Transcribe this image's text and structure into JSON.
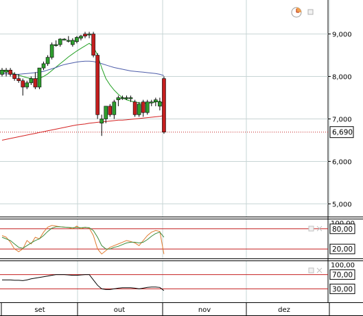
{
  "chart_data": [
    {
      "type": "candlestick",
      "panel": "price",
      "x_axis_labels": [
        "set",
        "out",
        "nov",
        "dez"
      ],
      "y_ticks": [
        "9,000",
        "8,000",
        "7,000",
        "6,000",
        "5,000"
      ],
      "ylim": [
        4.7,
        9.8
      ],
      "grid": true,
      "last_price_label": "6,690",
      "last_price": 6.69,
      "candles": [
        {
          "o": 8.05,
          "h": 8.2,
          "l": 8.0,
          "c": 8.15
        },
        {
          "o": 8.1,
          "h": 8.2,
          "l": 8.0,
          "c": 8.15
        },
        {
          "o": 8.15,
          "h": 8.2,
          "l": 8.0,
          "c": 8.05
        },
        {
          "o": 8.05,
          "h": 8.1,
          "l": 7.9,
          "c": 7.95
        },
        {
          "o": 7.95,
          "h": 8.05,
          "l": 7.85,
          "c": 7.9
        },
        {
          "o": 7.9,
          "h": 7.95,
          "l": 7.55,
          "c": 7.75
        },
        {
          "o": 7.75,
          "h": 7.9,
          "l": 7.7,
          "c": 7.85
        },
        {
          "o": 7.85,
          "h": 8.0,
          "l": 7.8,
          "c": 7.95
        },
        {
          "o": 7.95,
          "h": 8.1,
          "l": 7.7,
          "c": 7.75
        },
        {
          "o": 7.75,
          "h": 8.2,
          "l": 7.7,
          "c": 8.2
        },
        {
          "o": 8.2,
          "h": 8.35,
          "l": 8.15,
          "c": 8.3
        },
        {
          "o": 8.3,
          "h": 8.5,
          "l": 8.25,
          "c": 8.45
        },
        {
          "o": 8.45,
          "h": 8.8,
          "l": 8.4,
          "c": 8.75
        },
        {
          "o": 8.75,
          "h": 8.85,
          "l": 8.7,
          "c": 8.75
        },
        {
          "o": 8.75,
          "h": 8.9,
          "l": 8.7,
          "c": 8.88
        },
        {
          "o": 8.88,
          "h": 8.9,
          "l": 8.85,
          "c": 8.88
        },
        {
          "o": 8.85,
          "h": 8.95,
          "l": 8.8,
          "c": 8.85
        },
        {
          "o": 8.75,
          "h": 8.9,
          "l": 8.7,
          "c": 8.85
        },
        {
          "o": 8.82,
          "h": 8.95,
          "l": 8.78,
          "c": 8.92
        },
        {
          "o": 8.9,
          "h": 8.98,
          "l": 8.85,
          "c": 8.95
        },
        {
          "o": 9.0,
          "h": 9.05,
          "l": 8.9,
          "c": 8.95
        },
        {
          "o": 9.0,
          "h": 9.05,
          "l": 8.9,
          "c": 9.0
        },
        {
          "o": 9.0,
          "h": 9.05,
          "l": 8.45,
          "c": 8.5
        },
        {
          "o": 8.5,
          "h": 8.55,
          "l": 7.0,
          "c": 7.1
        },
        {
          "o": 6.9,
          "h": 7.1,
          "l": 6.6,
          "c": 7.0
        },
        {
          "o": 7.0,
          "h": 7.3,
          "l": 6.9,
          "c": 7.3
        },
        {
          "o": 7.3,
          "h": 7.35,
          "l": 7.05,
          "c": 7.1
        },
        {
          "o": 7.1,
          "h": 7.45,
          "l": 7.0,
          "c": 7.4
        },
        {
          "o": 7.45,
          "h": 7.55,
          "l": 7.3,
          "c": 7.5
        },
        {
          "o": 7.5,
          "h": 7.55,
          "l": 7.45,
          "c": 7.5
        },
        {
          "o": 7.5,
          "h": 7.55,
          "l": 7.45,
          "c": 7.5
        },
        {
          "o": 7.5,
          "h": 7.55,
          "l": 7.4,
          "c": 7.5
        },
        {
          "o": 7.4,
          "h": 7.45,
          "l": 7.05,
          "c": 7.1
        },
        {
          "o": 7.1,
          "h": 7.4,
          "l": 7.05,
          "c": 7.35
        },
        {
          "o": 7.4,
          "h": 7.45,
          "l": 7.05,
          "c": 7.15
        },
        {
          "o": 7.15,
          "h": 7.45,
          "l": 7.1,
          "c": 7.4
        },
        {
          "o": 7.4,
          "h": 7.45,
          "l": 7.3,
          "c": 7.4
        },
        {
          "o": 7.4,
          "h": 7.5,
          "l": 7.3,
          "c": 7.45
        },
        {
          "o": 7.3,
          "h": 7.5,
          "l": 7.2,
          "c": 7.4
        },
        {
          "o": 7.95,
          "h": 8.0,
          "l": 6.65,
          "c": 6.69
        }
      ],
      "moving_averages": [
        {
          "color": "#22a022",
          "values": [
            8.15,
            8.13,
            8.1,
            8.06,
            8.03,
            8.0,
            7.97,
            7.95,
            7.94,
            7.96,
            8.0,
            8.06,
            8.14,
            8.22,
            8.3,
            8.38,
            8.46,
            8.53,
            8.6,
            8.66,
            8.72,
            8.78,
            8.7,
            8.5,
            8.2,
            7.95,
            7.8,
            7.68,
            7.58,
            7.5,
            7.45,
            7.42,
            7.4,
            7.38,
            7.37,
            7.37,
            7.38,
            7.4,
            7.42,
            7.35
          ]
        },
        {
          "color": "#4a5aa8",
          "values": [
            8.07,
            8.06,
            8.06,
            8.05,
            8.05,
            8.06,
            8.07,
            8.08,
            8.09,
            8.1,
            8.12,
            8.15,
            8.18,
            8.21,
            8.25,
            8.28,
            8.3,
            8.32,
            8.34,
            8.35,
            8.36,
            8.36,
            8.35,
            8.33,
            8.3,
            8.27,
            8.24,
            8.21,
            8.19,
            8.17,
            8.15,
            8.13,
            8.12,
            8.11,
            8.1,
            8.09,
            8.08,
            8.07,
            8.05,
            8.02
          ]
        },
        {
          "color": "#d42020",
          "values": [
            6.5,
            6.52,
            6.54,
            6.56,
            6.58,
            6.6,
            6.62,
            6.64,
            6.66,
            6.68,
            6.7,
            6.72,
            6.74,
            6.76,
            6.78,
            6.8,
            6.82,
            6.84,
            6.86,
            6.87,
            6.88,
            6.9,
            6.91,
            6.92,
            6.93,
            6.94,
            6.95,
            6.96,
            6.97,
            6.97,
            6.98,
            6.99,
            7.0,
            7.01,
            7.02,
            7.03,
            7.04,
            7.05,
            7.06,
            7.08
          ]
        }
      ]
    },
    {
      "type": "line",
      "panel": "oscillator-1",
      "y_ticks": [
        "100,00",
        "80,00",
        "20,00"
      ],
      "ylim": [
        0,
        100
      ],
      "reference_lines": [
        80,
        20
      ],
      "boxed_ticks": [
        "80,00",
        "20,00"
      ],
      "series": [
        {
          "color": "#e07a30",
          "values": [
            60,
            55,
            40,
            20,
            12,
            20,
            45,
            35,
            55,
            50,
            70,
            85,
            90,
            88,
            86,
            85,
            84,
            80,
            88,
            80,
            85,
            82,
            60,
            20,
            5,
            15,
            25,
            30,
            35,
            40,
            45,
            42,
            38,
            30,
            45,
            60,
            70,
            75,
            72,
            5
          ]
        },
        {
          "color": "#3a8a3a",
          "values": [
            55,
            50,
            45,
            35,
            25,
            22,
            30,
            38,
            45,
            50,
            60,
            72,
            82,
            86,
            86,
            85,
            84,
            83,
            84,
            83,
            84,
            83,
            75,
            55,
            30,
            20,
            20,
            25,
            28,
            33,
            38,
            40,
            40,
            38,
            40,
            48,
            58,
            66,
            70,
            55
          ]
        }
      ]
    },
    {
      "type": "line",
      "panel": "oscillator-2",
      "y_ticks": [
        "100,00",
        "70,00",
        "30,00"
      ],
      "ylim": [
        0,
        100
      ],
      "reference_lines": [
        70,
        30
      ],
      "boxed_ticks": [
        "70,00",
        "30,00"
      ],
      "series": [
        {
          "color": "#000000",
          "values": [
            55,
            55,
            55,
            54,
            54,
            53,
            55,
            58,
            60,
            62,
            64,
            66,
            68,
            70,
            70,
            70,
            69,
            68,
            68,
            69,
            70,
            70,
            55,
            40,
            30,
            28,
            28,
            30,
            32,
            33,
            33,
            33,
            32,
            30,
            32,
            34,
            35,
            35,
            34,
            25
          ]
        }
      ]
    }
  ],
  "colors": {
    "grid": "#c7d4d4",
    "candle_up": "#2e9e2e",
    "candle_down": "#c41e1e",
    "last_price_line": "#c41e1e"
  },
  "icons": [
    "clock-icon",
    "restore-icon",
    "close-icon"
  ]
}
